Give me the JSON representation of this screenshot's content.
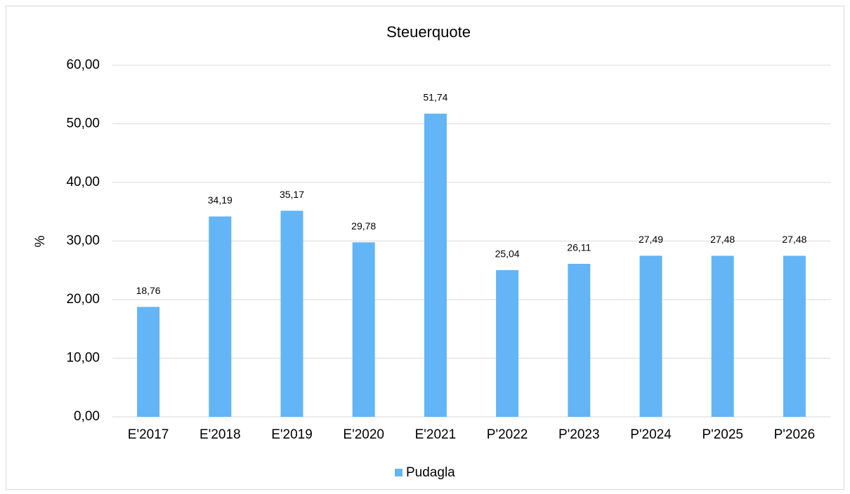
{
  "chart_data": {
    "type": "bar",
    "title": "Steuerquote",
    "y_label": "%",
    "categories": [
      "E'2017",
      "E'2018",
      "E'2019",
      "E'2020",
      "E'2021",
      "P'2022",
      "P'2023",
      "P'2024",
      "P'2025",
      "P'2026"
    ],
    "series": [
      {
        "name": "Pudagla",
        "color": "#63b5f5",
        "values": [
          18.76,
          34.19,
          35.17,
          29.78,
          51.74,
          25.04,
          26.11,
          27.49,
          27.48,
          27.48
        ],
        "value_labels": [
          "18,76",
          "34,19",
          "35,17",
          "29,78",
          "51,74",
          "25,04",
          "26,11",
          "27,49",
          "27,48",
          "27,48"
        ]
      }
    ],
    "ylim": [
      0,
      60
    ],
    "yticks": [
      {
        "value": 0,
        "label": "0,00"
      },
      {
        "value": 10,
        "label": "10,00"
      },
      {
        "value": 20,
        "label": "20,00"
      },
      {
        "value": 30,
        "label": "30,00"
      },
      {
        "value": 40,
        "label": "40,00"
      },
      {
        "value": 50,
        "label": "50,00"
      },
      {
        "value": 60,
        "label": "60,00"
      }
    ],
    "grid": true,
    "legend": "bottom"
  }
}
